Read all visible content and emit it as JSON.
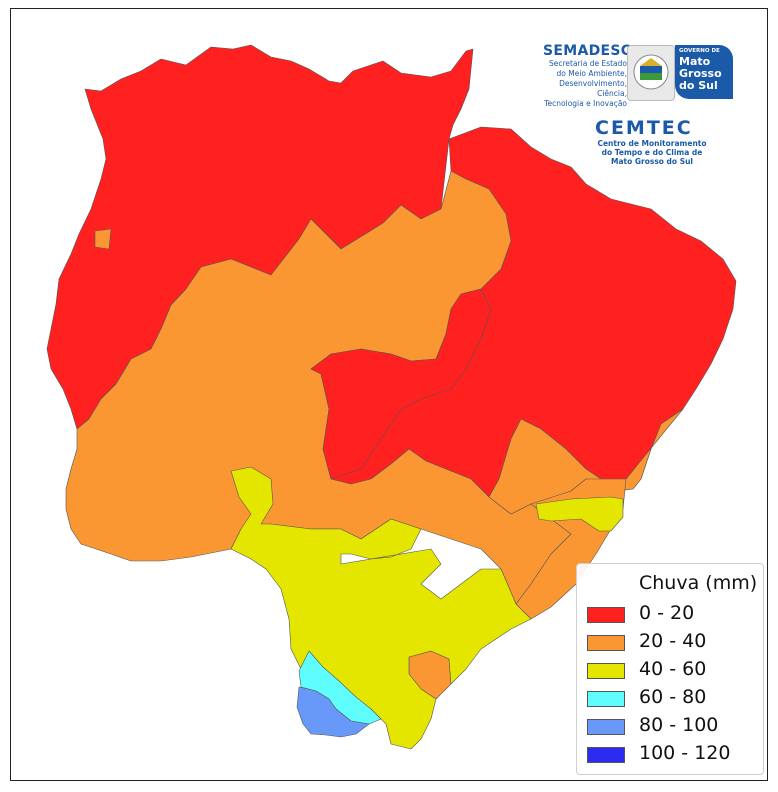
{
  "map": {
    "colors": {
      "c0_20": "#fe2120",
      "c20_40": "#fb9733",
      "c40_60": "#e4e600",
      "c60_80": "#5ffdfe",
      "c80_100": "#6899f9",
      "c100_120": "#2c2cf0",
      "border": "#555555"
    }
  },
  "logos": {
    "semadesc": {
      "title": "SEMADESC",
      "line1": "Secretaria de Estado",
      "line2": "do Meio Ambiente,",
      "line3": "Desenvolvimento, Ciência,",
      "line4": "Tecnologia e Inovação"
    },
    "government": {
      "top": "GOVERNO DE",
      "name1": "Mato",
      "name2": "Grosso",
      "name3": "do Sul"
    },
    "cemtec": {
      "title": "CEMTEC",
      "line1": "Centro de Monitoramento",
      "line2": "do Tempo e do Clima de",
      "line3": "Mato Grosso do Sul"
    }
  },
  "legend": {
    "title": "Chuva (mm)",
    "items": [
      {
        "label": "0 - 20",
        "color": "#fe2120"
      },
      {
        "label": "20 - 40",
        "color": "#fb9733"
      },
      {
        "label": "40 - 60",
        "color": "#e4e600"
      },
      {
        "label": "60 - 80",
        "color": "#5ffdfe"
      },
      {
        "label": "80 - 100",
        "color": "#6899f9"
      },
      {
        "label": "100 - 120",
        "color": "#2c2cf0"
      }
    ]
  }
}
